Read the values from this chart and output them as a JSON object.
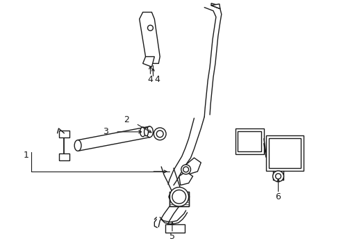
{
  "background_color": "#ffffff",
  "line_color": "#1a1a1a",
  "line_width": 1.0,
  "label_fontsize": 8,
  "fig_width": 4.89,
  "fig_height": 3.6,
  "dpi": 100
}
